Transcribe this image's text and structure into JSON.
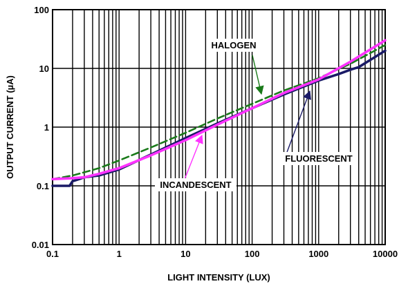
{
  "chart_data": {
    "type": "line",
    "xlabel": "LIGHT INTENSITY (LUX)",
    "ylabel": "OUTPUT CURRENT (µA)",
    "x_scale": "log",
    "y_scale": "log",
    "xlim": [
      0.1,
      10000
    ],
    "ylim": [
      0.01,
      100
    ],
    "grid": true,
    "x_tick_labels": [
      "0.1",
      "1",
      "10",
      "100",
      "1000",
      "10000"
    ],
    "y_tick_labels": [
      "0.01",
      "0.1",
      "1",
      "10",
      "100"
    ],
    "series": [
      {
        "name": "HALOGEN",
        "color": "#1a7a1a",
        "style": "dashed",
        "x": [
          0.1,
          0.2,
          0.3,
          0.5,
          1,
          3,
          10,
          30,
          100,
          300,
          1000,
          3000,
          10000
        ],
        "y": [
          0.13,
          0.15,
          0.17,
          0.2,
          0.27,
          0.45,
          0.8,
          1.4,
          2.5,
          4.2,
          6.8,
          12,
          25
        ]
      },
      {
        "name": "FLUORESCENT",
        "color": "#1a1a66",
        "style": "solid",
        "x": [
          0.1,
          0.15,
          0.18,
          0.2,
          0.25,
          0.3,
          0.5,
          1,
          3,
          10,
          30,
          100,
          300,
          1000,
          2000,
          3000,
          4000,
          6000,
          10000
        ],
        "y": [
          0.1,
          0.1,
          0.1,
          0.12,
          0.13,
          0.14,
          0.15,
          0.19,
          0.34,
          0.65,
          1.15,
          2.1,
          3.6,
          6.2,
          8,
          9.5,
          10.5,
          14,
          20
        ]
      },
      {
        "name": "INCANDESCENT",
        "color": "#ff33ff",
        "style": "solid",
        "x": [
          0.1,
          0.2,
          0.3,
          0.5,
          1,
          3,
          10,
          30,
          100,
          300,
          1000,
          3000,
          10000
        ],
        "y": [
          0.13,
          0.135,
          0.14,
          0.16,
          0.2,
          0.33,
          0.6,
          1.1,
          2.1,
          3.8,
          6.5,
          13,
          30
        ]
      }
    ],
    "annotations": [
      {
        "text": "HALOGEN",
        "target_x": 500,
        "target_y": 5.5,
        "color": "#1a7a1a"
      },
      {
        "text": "FLUORESCENT",
        "target_x": 700,
        "target_y": 5.8,
        "color": "#1a1a66"
      },
      {
        "text": "INCANDESCENT",
        "target_x": 20,
        "target_y": 0.85,
        "color": "#ff33ff"
      }
    ]
  }
}
